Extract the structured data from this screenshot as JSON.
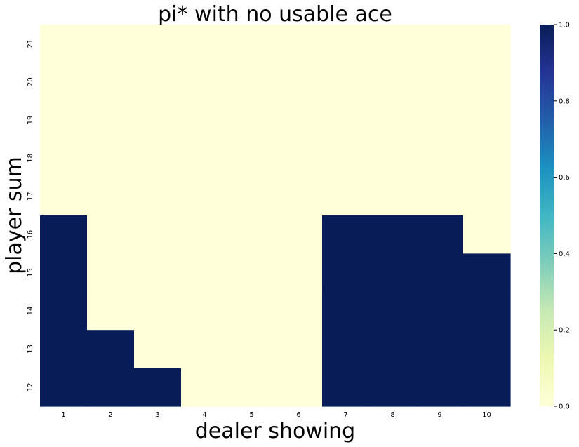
{
  "chart_data": {
    "type": "heatmap",
    "title": "pi* with no usable ace",
    "xlabel": "dealer showing",
    "ylabel": "player sum",
    "x_categories": [
      "1",
      "2",
      "3",
      "4",
      "5",
      "6",
      "7",
      "8",
      "9",
      "10"
    ],
    "y_categories": [
      "21",
      "20",
      "19",
      "18",
      "17",
      "16",
      "15",
      "14",
      "13",
      "12"
    ],
    "values": [
      [
        0,
        0,
        0,
        0,
        0,
        0,
        0,
        0,
        0,
        0
      ],
      [
        0,
        0,
        0,
        0,
        0,
        0,
        0,
        0,
        0,
        0
      ],
      [
        0,
        0,
        0,
        0,
        0,
        0,
        0,
        0,
        0,
        0
      ],
      [
        0,
        0,
        0,
        0,
        0,
        0,
        0,
        0,
        0,
        0
      ],
      [
        0,
        0,
        0,
        0,
        0,
        0,
        0,
        0,
        0,
        0
      ],
      [
        1,
        0,
        0,
        0,
        0,
        0,
        1,
        1,
        1,
        0
      ],
      [
        1,
        0,
        0,
        0,
        0,
        0,
        1,
        1,
        1,
        1
      ],
      [
        1,
        0,
        0,
        0,
        0,
        0,
        1,
        1,
        1,
        1
      ],
      [
        1,
        1,
        0,
        0,
        0,
        0,
        1,
        1,
        1,
        1
      ],
      [
        1,
        1,
        1,
        0,
        0,
        0,
        1,
        1,
        1,
        1
      ]
    ],
    "colorbar": {
      "range": [
        0.0,
        1.0
      ],
      "ticks": [
        "0.0",
        "0.2",
        "0.4",
        "0.6",
        "0.8",
        "1.0"
      ],
      "colormap": "YlGnBu",
      "low_color": "#ffffd9",
      "high_color": "#081d58"
    },
    "grid": false,
    "legend": "colorbar-right"
  }
}
